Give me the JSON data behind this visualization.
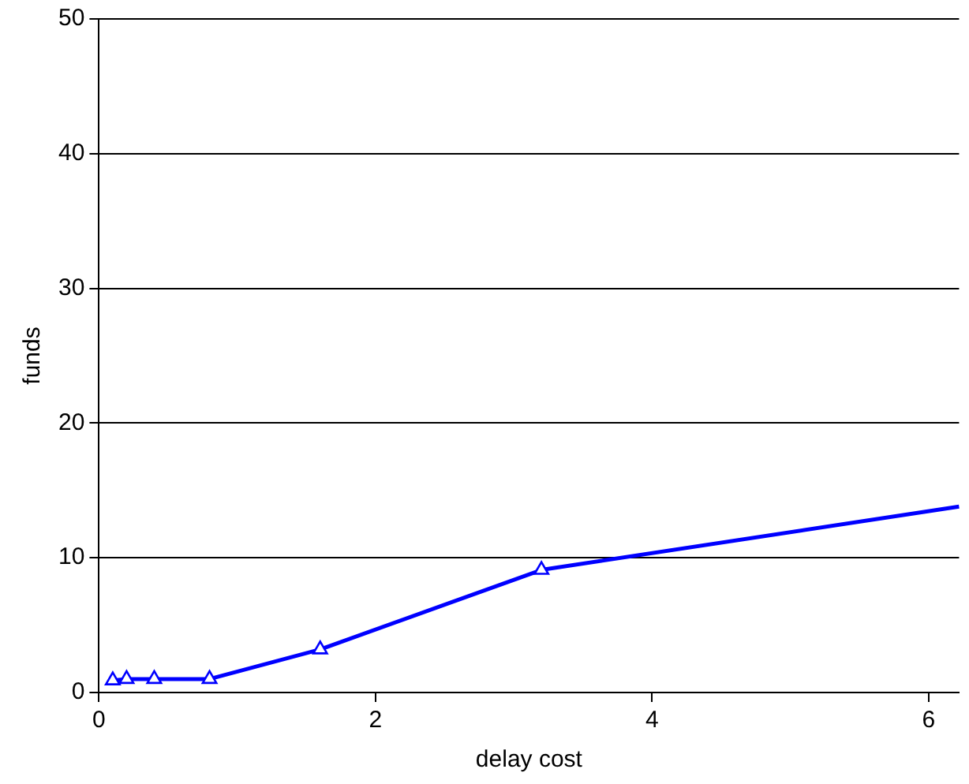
{
  "chart_data": {
    "type": "line",
    "xlabel": "delay cost",
    "ylabel": "funds",
    "x": [
      0.1,
      0.2,
      0.4,
      0.8,
      1.6,
      3.2,
      6.22
    ],
    "series": [
      {
        "color": "#0000ff",
        "values": [
          0.9,
          1.0,
          1.0,
          1.0,
          3.2,
          9.1,
          13.8
        ]
      }
    ],
    "xlim": [
      0,
      6.22
    ],
    "xticks": [
      0,
      2,
      4,
      6
    ],
    "ylim": [
      0,
      50
    ],
    "yticks": [
      0,
      10,
      20,
      30,
      40,
      50
    ],
    "grid": "y",
    "legend": false,
    "marker": "triangle",
    "line_style": "solid"
  }
}
